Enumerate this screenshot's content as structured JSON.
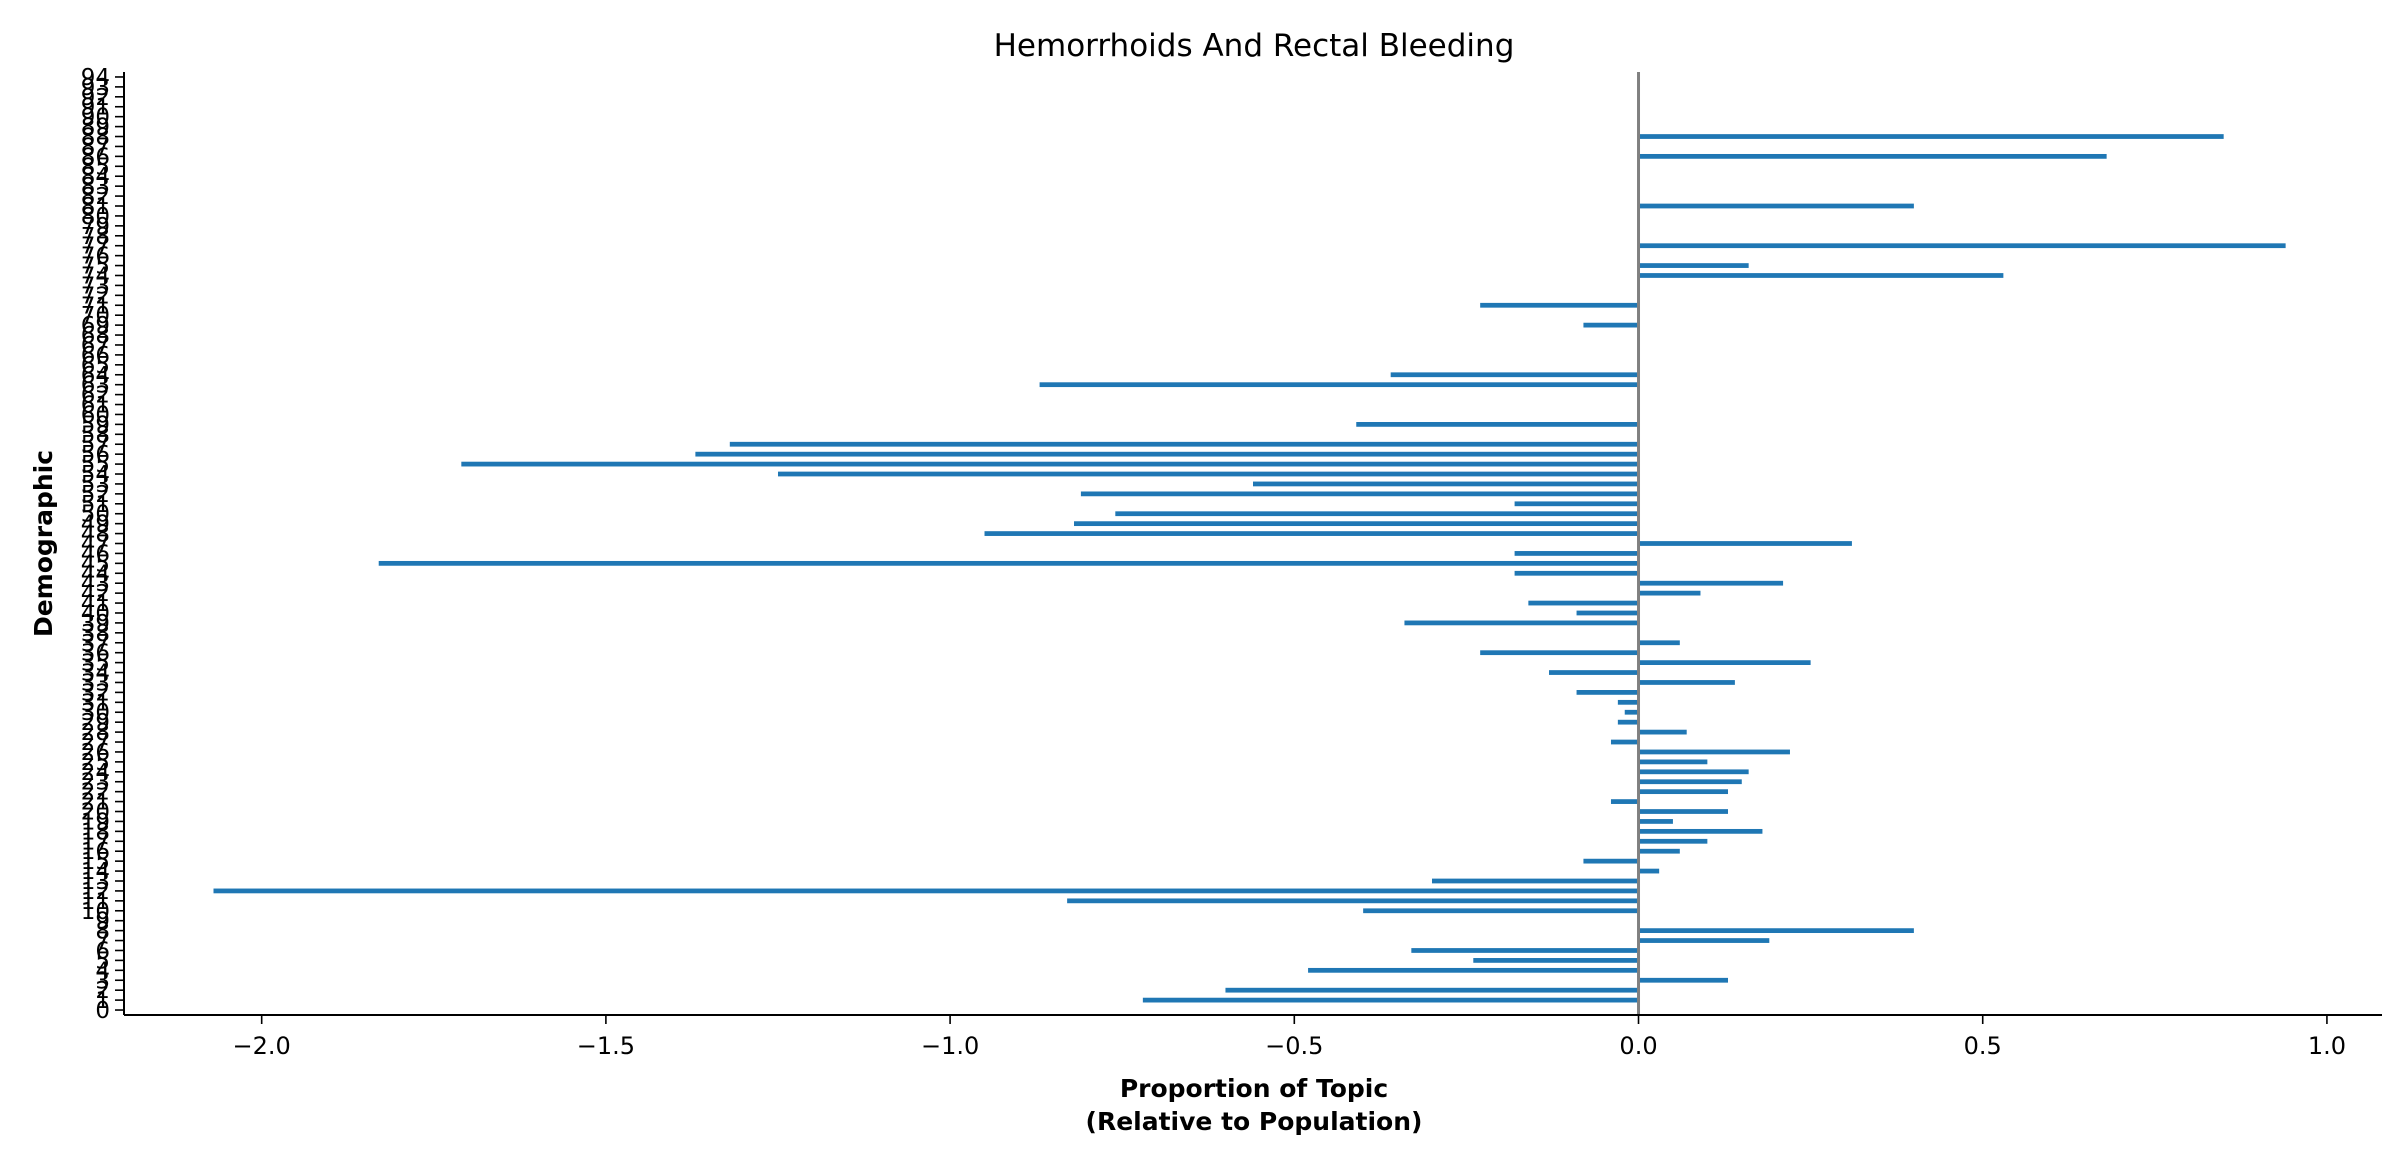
{
  "chart_data": {
    "type": "bar",
    "orientation": "horizontal",
    "title": "Hemorrhoids And Rectal Bleeding",
    "xlabel": "Proportion of Topic\n(Relative to Population)",
    "ylabel": "Demographic",
    "xlim": [
      -2.2,
      1.08
    ],
    "ylim": [
      -0.5,
      94.5
    ],
    "xticks": [
      -2.0,
      -1.5,
      -1.0,
      -0.5,
      0.0,
      0.5,
      1.0
    ],
    "xtick_labels": [
      "−2.0",
      "−1.5",
      "−1.0",
      "−0.5",
      "0.0",
      "0.5",
      "1.0"
    ],
    "grid": false,
    "color": "#1f77b4",
    "zero_line_color": "#808080",
    "categories": [
      "0",
      "1",
      "2",
      "3",
      "4",
      "5",
      "6",
      "7",
      "8",
      "9",
      "10",
      "11",
      "12",
      "13",
      "14",
      "15",
      "16",
      "17",
      "18",
      "19",
      "20",
      "21",
      "22",
      "23",
      "24",
      "25",
      "26",
      "27",
      "28",
      "29",
      "30",
      "31",
      "32",
      "33",
      "34",
      "35",
      "36",
      "37",
      "38",
      "39",
      "40",
      "41",
      "42",
      "43",
      "44",
      "45",
      "46",
      "47",
      "48",
      "49",
      "50",
      "51",
      "52",
      "53",
      "54",
      "55",
      "56",
      "57",
      "58",
      "59",
      "60",
      "61",
      "62",
      "63",
      "64",
      "65",
      "66",
      "67",
      "68",
      "69",
      "70",
      "71",
      "72",
      "73",
      "74",
      "75",
      "76",
      "77",
      "78",
      "79",
      "80",
      "81",
      "82",
      "83",
      "84",
      "85",
      "86",
      "87",
      "88",
      "89",
      "90",
      "91",
      "92",
      "93",
      "94"
    ],
    "values": [
      0,
      -0.72,
      -0.6,
      0.13,
      -0.48,
      -0.24,
      -0.33,
      0.19,
      0.4,
      0,
      -0.4,
      -0.83,
      -2.07,
      -0.3,
      0.03,
      -0.08,
      0.06,
      0.1,
      0.18,
      0.05,
      0.13,
      -0.04,
      0.13,
      0.15,
      0.16,
      0.1,
      0.22,
      -0.04,
      0.07,
      -0.03,
      -0.02,
      -0.03,
      -0.09,
      0.14,
      -0.13,
      0.25,
      -0.23,
      0.06,
      0,
      -0.34,
      -0.09,
      -0.16,
      0.09,
      0.21,
      -0.18,
      -1.83,
      -0.18,
      0.31,
      -0.95,
      -0.82,
      -0.76,
      -0.18,
      -0.81,
      -0.56,
      -1.25,
      -1.71,
      -1.37,
      -1.32,
      0,
      -0.41,
      0,
      0,
      0,
      -0.87,
      -0.36,
      0,
      0,
      0,
      0,
      -0.08,
      0,
      -0.23,
      0,
      0,
      0.53,
      0.16,
      0,
      0.94,
      0,
      0,
      0,
      0.4,
      0,
      0,
      0,
      0,
      0.68,
      0,
      0.85,
      0,
      0,
      0,
      0,
      0,
      0
    ]
  }
}
